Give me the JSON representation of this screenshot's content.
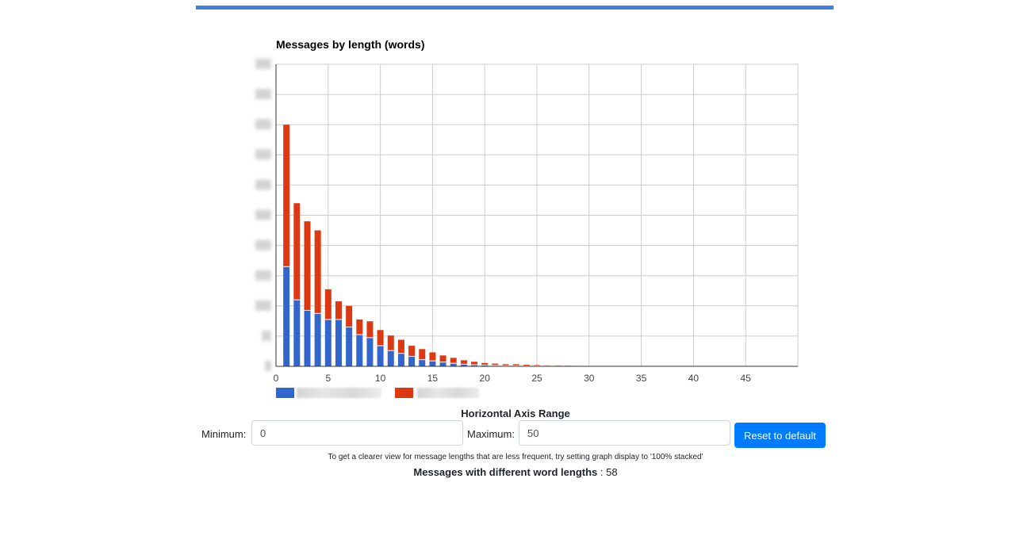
{
  "page": {
    "accent_color": "#3f7fe0"
  },
  "chart": {
    "title": "Messages by length (words)",
    "x_ticks": [
      "0",
      "5",
      "10",
      "15",
      "20",
      "25",
      "30",
      "35",
      "40",
      "45"
    ]
  },
  "chart_data": {
    "type": "bar",
    "stacked": true,
    "title": "Messages by length (words)",
    "xlabel": "",
    "ylabel": "",
    "xlim": [
      0,
      50
    ],
    "ylim": [
      0,
      10
    ],
    "grid": true,
    "legend_position": "bottom-left",
    "y_tick_labels_visible": false,
    "x": [
      1,
      2,
      3,
      4,
      5,
      6,
      7,
      8,
      9,
      10,
      11,
      12,
      13,
      14,
      15,
      16,
      17,
      18,
      19,
      20,
      21,
      22,
      23,
      24,
      25,
      26,
      27,
      28,
      29,
      30
    ],
    "series": [
      {
        "color": "#3366cc",
        "values": [
          3.3,
          2.2,
          1.85,
          1.75,
          1.55,
          1.55,
          1.3,
          1.05,
          0.95,
          0.68,
          0.52,
          0.43,
          0.33,
          0.22,
          0.18,
          0.14,
          0.1,
          0.07,
          0.05,
          0.04,
          0.03,
          0.02,
          0.02,
          0.01,
          0.01,
          0.01,
          0.01,
          0.005,
          0.005,
          0.003
        ]
      },
      {
        "color": "#dc3912",
        "values": [
          4.7,
          3.2,
          2.95,
          2.75,
          1.0,
          0.6,
          0.7,
          0.5,
          0.54,
          0.52,
          0.5,
          0.45,
          0.35,
          0.35,
          0.28,
          0.22,
          0.18,
          0.13,
          0.1,
          0.07,
          0.06,
          0.05,
          0.05,
          0.04,
          0.03,
          0.02,
          0.02,
          0.015,
          0.01,
          0.007
        ]
      }
    ]
  },
  "legend": {
    "series_1_color": "#3366cc",
    "series_2_color": "#dc3912"
  },
  "controls": {
    "axis_title": "Horizontal Axis Range",
    "min_label": "Minimum:",
    "min_value": "0",
    "max_label": "Maximum:",
    "max_value": "50",
    "reset_label": "Reset to default",
    "button_color": "#007bff"
  },
  "footer": {
    "hint": "To get a clearer view for message lengths that are less frequent, try setting graph display to '100% stacked'",
    "summary_label": "Messages with different word lengths",
    "summary_separator": " : ",
    "summary_value": "58"
  }
}
